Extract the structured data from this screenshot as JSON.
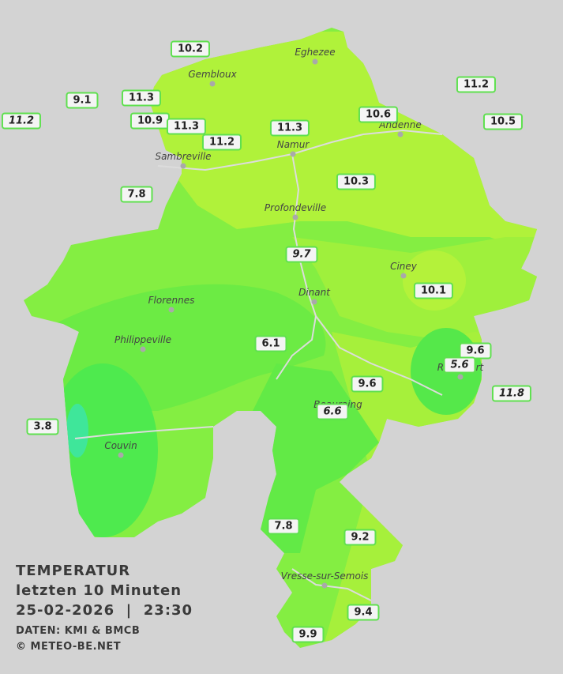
{
  "title": {
    "line1": "TEMPERATUR",
    "line2": "letzten 10 Minuten",
    "line3": "25-02-2026  |  23:30",
    "source": "DATEN: KMI & BMCB",
    "copyright": "© METEO-BE.NET"
  },
  "towns": [
    "Eghezee",
    "Gembloux",
    "Andenne",
    "Namur",
    "Sambreville",
    "Profondeville",
    "Ciney",
    "Dinant",
    "Florennes",
    "Philippeville",
    "Rochefort",
    "Beauraing",
    "Couvin",
    "Vresse-sur-Semois"
  ],
  "stations": [
    "10.2",
    "9.1",
    "11.3",
    "11.2",
    "10.9",
    "11.3",
    "11.2",
    "11.3",
    "10.6",
    "11.2",
    "10.5",
    "7.8",
    "10.3",
    "9.7",
    "10.1",
    "6.1",
    "9.6",
    "5.6",
    "9.6",
    "11.8",
    "6.6",
    "3.8",
    "7.8",
    "9.2",
    "9.4",
    "9.9"
  ]
}
